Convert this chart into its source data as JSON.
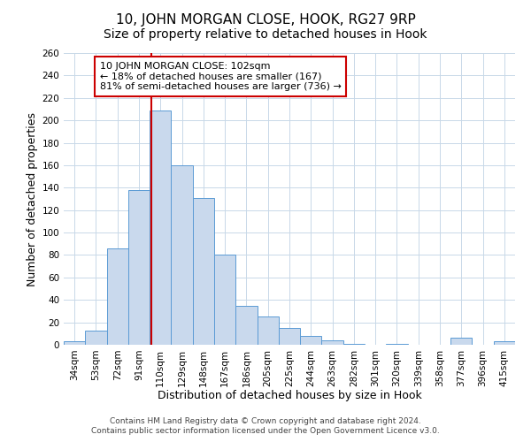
{
  "title": "10, JOHN MORGAN CLOSE, HOOK, RG27 9RP",
  "subtitle": "Size of property relative to detached houses in Hook",
  "xlabel": "Distribution of detached houses by size in Hook",
  "ylabel": "Number of detached properties",
  "bin_labels": [
    "34sqm",
    "53sqm",
    "72sqm",
    "91sqm",
    "110sqm",
    "129sqm",
    "148sqm",
    "167sqm",
    "186sqm",
    "205sqm",
    "225sqm",
    "244sqm",
    "263sqm",
    "282sqm",
    "301sqm",
    "320sqm",
    "339sqm",
    "358sqm",
    "377sqm",
    "396sqm",
    "415sqm"
  ],
  "bar_values": [
    3,
    13,
    86,
    138,
    209,
    160,
    131,
    80,
    35,
    25,
    15,
    8,
    4,
    1,
    0,
    1,
    0,
    0,
    6,
    0,
    3
  ],
  "bar_color": "#c9d9ed",
  "bar_edge_color": "#5b9bd5",
  "ylim": [
    0,
    260
  ],
  "yticks": [
    0,
    20,
    40,
    60,
    80,
    100,
    120,
    140,
    160,
    180,
    200,
    220,
    240,
    260
  ],
  "vline_x_index": 3.578,
  "vline_color": "#cc0000",
  "annotation_text": "10 JOHN MORGAN CLOSE: 102sqm\n← 18% of detached houses are smaller (167)\n81% of semi-detached houses are larger (736) →",
  "annotation_box_color": "#ffffff",
  "annotation_box_edge": "#cc0000",
  "footer_line1": "Contains HM Land Registry data © Crown copyright and database right 2024.",
  "footer_line2": "Contains public sector information licensed under the Open Government Licence v3.0.",
  "background_color": "#ffffff",
  "grid_color": "#c8d8e8",
  "title_fontsize": 11,
  "subtitle_fontsize": 10,
  "axis_label_fontsize": 9,
  "tick_fontsize": 7.5,
  "annotation_fontsize": 8,
  "footer_fontsize": 6.5
}
